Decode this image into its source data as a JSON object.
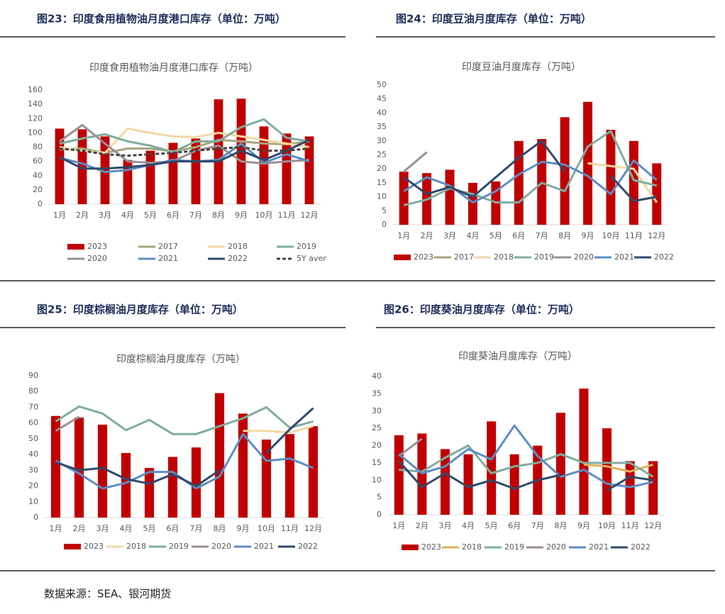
{
  "chart_data": [
    {
      "type": "combo",
      "caption": "图23：印度食用植物油月度港口库存（单位：万吨）",
      "title": "印度食用植物油月度港口库存（万吨）",
      "categories": [
        "1月",
        "2月",
        "3月",
        "4月",
        "5月",
        "6月",
        "7月",
        "8月",
        "9月",
        "10月",
        "11月",
        "12月"
      ],
      "ylim": [
        0,
        160
      ],
      "yticks": [
        0,
        20,
        40,
        60,
        80,
        100,
        120,
        140,
        160
      ],
      "series": [
        {
          "name": "2023",
          "type": "bar",
          "color": "#c00000",
          "values": [
            106,
            105,
            95,
            62,
            75,
            86,
            92,
            147,
            148,
            109,
            99,
            95
          ]
        },
        {
          "name": "2017",
          "type": "line",
          "color": "#a9a57c",
          "values": [
            77,
            78,
            72,
            78,
            78,
            74,
            80,
            90,
            88,
            85,
            84,
            88
          ]
        },
        {
          "name": "2018",
          "type": "line",
          "color": "#f2d9a4",
          "values": [
            80,
            75,
            72,
            106,
            100,
            95,
            94,
            100,
            95,
            90,
            85,
            80
          ]
        },
        {
          "name": "2019",
          "type": "line",
          "color": "#7fada0",
          "values": [
            85,
            92,
            98,
            88,
            82,
            73,
            88,
            88,
            108,
            119,
            93,
            88
          ]
        },
        {
          "name": "2020",
          "type": "line",
          "color": "#9a8f94",
          "values": [
            88,
            111,
            85,
            60,
            58,
            60,
            75,
            82,
            60,
            57,
            60,
            62
          ]
        },
        {
          "name": "2021",
          "type": "line",
          "color": "#5b8ec4",
          "values": [
            65,
            57,
            45,
            48,
            55,
            62,
            60,
            62,
            85,
            58,
            70,
            60
          ]
        },
        {
          "name": "2022",
          "type": "line",
          "color": "#2e4a6b",
          "values": [
            66,
            50,
            50,
            52,
            55,
            60,
            60,
            60,
            75,
            62,
            75,
            90
          ]
        },
        {
          "name": "5Y aver",
          "type": "line",
          "dash": true,
          "color": "#444444",
          "values": [
            78,
            75,
            70,
            68,
            70,
            72,
            75,
            78,
            80,
            75,
            75,
            78
          ]
        }
      ]
    },
    {
      "type": "combo",
      "caption": "图24：印度豆油月度库存（单位：万吨）",
      "title": "印度豆油月度库存（万吨）",
      "categories": [
        "1月",
        "2月",
        "3月",
        "4月",
        "5月",
        "6月",
        "7月",
        "8月",
        "9月",
        "10月",
        "11月",
        "12月"
      ],
      "ylim": [
        0,
        50
      ],
      "yticks": [
        0,
        5,
        10,
        15,
        20,
        25,
        30,
        35,
        40,
        45,
        50
      ],
      "series": [
        {
          "name": "2023",
          "type": "bar",
          "color": "#c00000",
          "values": [
            19,
            18.5,
            19.7,
            15,
            15.5,
            30,
            30.7,
            38.5,
            44,
            34,
            30,
            22
          ]
        },
        {
          "name": "2017",
          "type": "line",
          "color": "#a9a57c",
          "values": [
            null,
            null,
            null,
            null,
            null,
            null,
            null,
            null,
            null,
            null,
            null,
            null
          ]
        },
        {
          "name": "2018",
          "type": "line",
          "color": "#f2d9a4",
          "values": [
            null,
            null,
            null,
            null,
            null,
            null,
            null,
            null,
            22,
            21,
            20,
            8
          ]
        },
        {
          "name": "2019",
          "type": "line",
          "color": "#7fada0",
          "values": [
            7,
            9,
            13,
            11,
            8,
            8,
            15,
            12,
            28,
            33.5,
            16,
            14
          ]
        },
        {
          "name": "2020",
          "type": "line",
          "color": "#9a8f94",
          "values": [
            19,
            26,
            null,
            null,
            null,
            null,
            null,
            null,
            null,
            null,
            null,
            null
          ]
        },
        {
          "name": "2021",
          "type": "line",
          "color": "#5b8ec4",
          "values": [
            12,
            17,
            14,
            8,
            12,
            18,
            22.5,
            21.5,
            17.5,
            11,
            23,
            16
          ]
        },
        {
          "name": "2022",
          "type": "line",
          "color": "#2e4a6b",
          "values": [
            17,
            11,
            13.5,
            10,
            17,
            24,
            30,
            19,
            null,
            17.5,
            8.5,
            10
          ]
        }
      ]
    },
    {
      "type": "combo",
      "caption": "图25：印度棕榈油月度库存（单位：万吨）",
      "title": "印度棕榈油月度库存（万吨）",
      "categories": [
        "1月",
        "2月",
        "3月",
        "4月",
        "5月",
        "6月",
        "7月",
        "8月",
        "9月",
        "10月",
        "11月",
        "12月"
      ],
      "ylim": [
        0,
        90
      ],
      "yticks": [
        0,
        10,
        20,
        30,
        40,
        50,
        60,
        70,
        80,
        90
      ],
      "series": [
        {
          "name": "2023",
          "type": "bar",
          "color": "#c00000",
          "values": [
            64.5,
            63.5,
            59,
            41,
            31.5,
            38.5,
            44.5,
            79,
            66,
            49.5,
            53,
            58
          ]
        },
        {
          "name": "2018",
          "type": "line",
          "color": "#f2d9a4",
          "values": [
            null,
            null,
            null,
            null,
            null,
            null,
            null,
            null,
            55,
            55,
            54,
            58
          ]
        },
        {
          "name": "2019",
          "type": "line",
          "color": "#7fada0",
          "values": [
            61,
            70.5,
            66,
            55.5,
            62,
            53,
            53,
            58,
            63,
            70,
            57,
            61
          ]
        },
        {
          "name": "2020",
          "type": "line",
          "color": "#9a8f94",
          "values": [
            55,
            64,
            null,
            null,
            null,
            null,
            null,
            null,
            null,
            null,
            null,
            null
          ]
        },
        {
          "name": "2021",
          "type": "line",
          "color": "#5b8ec4",
          "values": [
            36,
            28,
            18.5,
            22,
            29,
            29,
            18.5,
            26,
            53,
            36,
            37.5,
            31.5
          ]
        },
        {
          "name": "2022",
          "type": "line",
          "color": "#2e4a6b",
          "values": [
            35,
            30,
            31.5,
            24.5,
            21.5,
            27.5,
            20,
            30,
            null,
            41,
            56,
            69.5
          ]
        }
      ]
    },
    {
      "type": "combo",
      "caption": "图26：印度葵油月度库存（单位：万吨）",
      "title": "印度葵油月度库存（万吨）",
      "categories": [
        "1月",
        "2月",
        "3月",
        "4月",
        "5月",
        "6月",
        "7月",
        "8月",
        "9月",
        "10月",
        "11月",
        "12月"
      ],
      "ylim": [
        0,
        40
      ],
      "yticks": [
        0,
        5,
        10,
        15,
        20,
        25,
        30,
        35,
        40
      ],
      "series": [
        {
          "name": "2023",
          "type": "bar",
          "color": "#c00000",
          "values": [
            23,
            23.5,
            19,
            17.5,
            27,
            17.5,
            20,
            29.5,
            36.5,
            25,
            15.5,
            15.5
          ]
        },
        {
          "name": "2018",
          "type": "line",
          "color": "#e0b060",
          "values": [
            null,
            null,
            null,
            null,
            null,
            null,
            null,
            null,
            14.5,
            14,
            12.5,
            14.5
          ]
        },
        {
          "name": "2019",
          "type": "line",
          "color": "#7fada0",
          "values": [
            13,
            12.5,
            16.5,
            20,
            12,
            14,
            15,
            17.5,
            15,
            15,
            15,
            11
          ]
        },
        {
          "name": "2020",
          "type": "line",
          "color": "#9a8f94",
          "values": [
            17,
            22,
            null,
            null,
            null,
            null,
            null,
            null,
            null,
            null,
            null,
            null
          ]
        },
        {
          "name": "2021",
          "type": "line",
          "color": "#5b8ec4",
          "values": [
            17.5,
            12,
            14,
            19,
            16,
            25.8,
            17,
            11,
            13,
            9,
            8,
            9.5
          ]
        },
        {
          "name": "2022",
          "type": "line",
          "color": "#2e4a6b",
          "values": [
            15.5,
            8,
            12,
            8,
            10,
            7.5,
            10,
            11.5,
            null,
            7,
            11,
            10
          ]
        }
      ]
    }
  ],
  "source": "数据来源：SEA、银河期货"
}
